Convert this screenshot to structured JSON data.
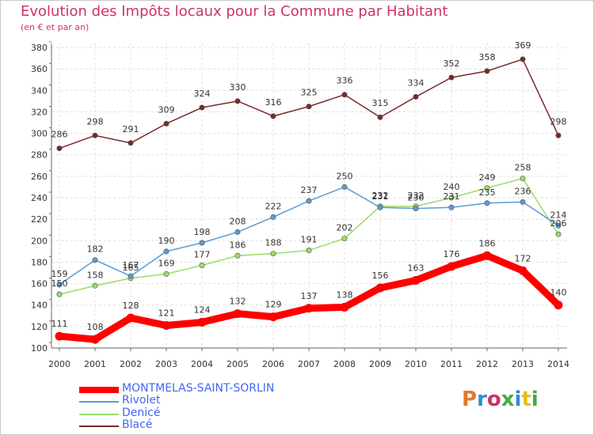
{
  "title": "Evolution des Impôts locaux pour la Commune par Habitant",
  "subtitle": "(en € et par an)",
  "logo": {
    "text": "Proxiti",
    "colors": [
      "#e07a2e",
      "#2e8bd6",
      "#cc3366",
      "#44aa44",
      "#2e8bd6",
      "#e0c020",
      "#44aa44"
    ]
  },
  "chart_data": {
    "type": "line",
    "x": [
      "2000",
      "2001",
      "2002",
      "2003",
      "2004",
      "2005",
      "2006",
      "2007",
      "2008",
      "2009",
      "2010",
      "2011",
      "2012",
      "2013",
      "2014"
    ],
    "ylim": [
      100,
      380
    ],
    "yticks": [
      100,
      120,
      140,
      160,
      180,
      200,
      220,
      240,
      260,
      280,
      300,
      320,
      340,
      360,
      380
    ],
    "grid": true,
    "legend_position": "bottom-left",
    "series": [
      {
        "name": "MONTMELAS-SAINT-SORLIN",
        "color": "#ff0000",
        "values": [
          111,
          108,
          128,
          121,
          124,
          132,
          129,
          137,
          138,
          156,
          163,
          176,
          186,
          172,
          140
        ]
      },
      {
        "name": "Rivolet",
        "color": "#5b9bd5",
        "values": [
          159,
          182,
          167,
          190,
          198,
          208,
          222,
          237,
          250,
          231,
          230,
          231,
          235,
          236,
          214
        ]
      },
      {
        "name": "Denicé",
        "color": "#99dd66",
        "values": [
          150,
          158,
          165,
          169,
          177,
          186,
          188,
          191,
          202,
          232,
          232,
          240,
          249,
          258,
          206
        ]
      },
      {
        "name": "Blacé",
        "color": "#7a2a2a",
        "values": [
          286,
          298,
          291,
          309,
          324,
          330,
          316,
          325,
          336,
          315,
          334,
          352,
          358,
          369,
          298
        ]
      }
    ],
    "labels_shown": {
      "MONTMELAS-SAINT-SORLIN": [
        "111",
        "108",
        "128",
        "121",
        "124",
        "132",
        "129",
        "137",
        "138",
        "156",
        "163",
        "176",
        "186",
        "172",
        "140"
      ],
      "Rivolet": [
        "159",
        "182",
        "167",
        "190",
        "198",
        "208",
        "222",
        "237",
        "250",
        "231",
        "230",
        "231",
        "235",
        "236",
        "214"
      ],
      "Denicé": [
        "150",
        "158",
        "165",
        "169",
        "177",
        "186",
        "188",
        "191",
        "202",
        "232",
        "232",
        "240",
        "249",
        "258",
        "206"
      ],
      "Blacé": [
        "286",
        "298",
        "291",
        "309",
        "324",
        "330",
        "316",
        "325",
        "336",
        "315",
        "334",
        "352",
        "358",
        "369",
        "298"
      ]
    }
  }
}
